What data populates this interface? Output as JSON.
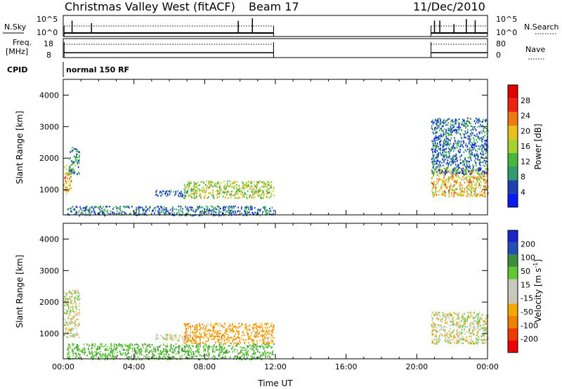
{
  "header": {
    "title": "Christmas Valley West (fitACF)",
    "beam": "Beam 17",
    "date": "11/Dec/2010"
  },
  "strips": {
    "nsky_label": "N.Sky",
    "nsky_ticks": [
      "10^5",
      "10^0"
    ],
    "nsearch_label": "N.Search",
    "nsearch_ticks": [
      "10^5",
      "10^0"
    ],
    "freq_label_1": "Freq.",
    "freq_label_2": "[MHz]",
    "freq_ticks": [
      "18",
      "8"
    ],
    "nave_label": "Nave",
    "nave_ticks": [
      "80",
      "0"
    ],
    "cpid_label": "CPID",
    "cpid_value": "normal 150 RF"
  },
  "colors": {
    "power_scale": [
      "#0b1cf2",
      "#1e3fb0",
      "#2f9c6e",
      "#48b63a",
      "#a9d12e",
      "#e8c21b",
      "#f07a12",
      "#ec2410",
      "#e40000"
    ],
    "velocity_scale": [
      "#ee0000",
      "#f03a00",
      "#f08000",
      "#f4a800",
      "#c8c8bc",
      "#c8c8bc",
      "#5fc833",
      "#3d8f3a",
      "#244fb5",
      "#1a28c9"
    ],
    "grey": "#c9c9bf"
  },
  "chart_data": [
    {
      "type": "heatmap",
      "panel": "power",
      "xlabel": "",
      "ylabel": "Slant Range [km]",
      "xlim_hours": [
        0,
        24
      ],
      "ylim": [
        200,
        4500
      ],
      "yticks": [
        "4000",
        "3000",
        "2000",
        "1000"
      ],
      "colorbar_label": "Power [dB]",
      "colorbar_ticks": [
        "28",
        "24",
        "20",
        "16",
        "12",
        "8",
        "4"
      ],
      "scatter_regions": [
        {
          "t0": 0.0,
          "t1": 0.45,
          "r0": 900,
          "r1": 1800,
          "value": 22
        },
        {
          "t0": 0.3,
          "t1": 0.9,
          "r0": 1500,
          "r1": 2400,
          "value": 10
        },
        {
          "t0": 5.2,
          "t1": 7.0,
          "r0": 800,
          "r1": 1000,
          "value": 6
        },
        {
          "t0": 6.8,
          "t1": 11.9,
          "r0": 750,
          "r1": 1300,
          "value": 18
        },
        {
          "t0": 0.2,
          "t1": 11.9,
          "r0": 200,
          "r1": 500,
          "value": 8
        },
        {
          "t0": 20.8,
          "t1": 24.0,
          "r0": 800,
          "r1": 1700,
          "value": 22
        },
        {
          "t0": 20.8,
          "t1": 24.0,
          "r0": 1500,
          "r1": 3300,
          "value": 8
        }
      ]
    },
    {
      "type": "heatmap",
      "panel": "velocity",
      "xlabel": "Time UT",
      "ylabel": "Slant Range [km]",
      "xlim_hours": [
        0,
        24
      ],
      "ylim": [
        200,
        4500
      ],
      "yticks": [
        "4000",
        "3000",
        "2000",
        "1000"
      ],
      "xticks": [
        "00:00",
        "04:00",
        "08:00",
        "12:00",
        "16:00",
        "20:00",
        "00:00"
      ],
      "colorbar_label": "Velocity [m s^-1]",
      "colorbar_ticks": [
        "200",
        "100",
        "50",
        "15",
        "-15",
        "-50",
        "-100",
        "-200"
      ],
      "scatter_regions": [
        {
          "t0": 0.0,
          "t1": 0.9,
          "r0": 900,
          "r1": 2400,
          "value": 0
        },
        {
          "t0": 5.2,
          "t1": 7.0,
          "r0": 800,
          "r1": 1000,
          "value": 0
        },
        {
          "t0": 6.8,
          "t1": 11.9,
          "r0": 700,
          "r1": 1350,
          "value": -40
        },
        {
          "t0": 0.2,
          "t1": 11.9,
          "r0": 200,
          "r1": 700,
          "value": 40
        },
        {
          "t0": 20.8,
          "t1": 24.0,
          "r0": 700,
          "r1": 1700,
          "value": 0
        }
      ]
    }
  ]
}
